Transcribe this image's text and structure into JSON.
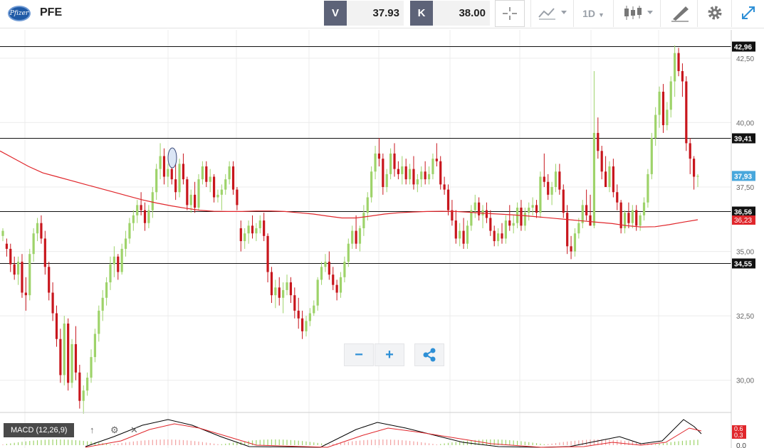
{
  "header": {
    "logo_text": "Pfizer",
    "symbol": "PFE",
    "sell": {
      "label": "V",
      "value": "37.93"
    },
    "buy": {
      "label": "K",
      "value": "38.00"
    },
    "timeframe": "1D"
  },
  "colors": {
    "up": "#9ed36a",
    "down": "#c8161d",
    "ma": "#e0262b",
    "macd": "#000000",
    "signal": "#e0262b",
    "badge": "#111111",
    "price_badge": "#48a7dc"
  },
  "chart_data": {
    "type": "candlestick",
    "symbol": "PFE",
    "y_ticks": [
      "42,50",
      "40,00",
      "37,50",
      "35,00",
      "32,50",
      "30,00"
    ],
    "ylim": [
      28.75,
      43.6
    ],
    "horizontal_levels": [
      "42,96",
      "39,41",
      "36,56",
      "34,55"
    ],
    "current_price": "37,93",
    "ma_value": "36,23",
    "candles": [
      [
        35.6,
        35.9,
        35.4,
        35.8
      ],
      [
        35.3,
        35.5,
        34.8,
        35.1
      ],
      [
        35.1,
        35.3,
        34.2,
        34.5
      ],
      [
        34.5,
        34.8,
        33.9,
        34.1
      ],
      [
        34.1,
        34.8,
        33.7,
        34.6
      ],
      [
        34.6,
        34.9,
        33.2,
        33.4
      ],
      [
        33.4,
        34.0,
        32.7,
        33.3
      ],
      [
        33.3,
        35.1,
        33.1,
        34.9
      ],
      [
        34.9,
        35.9,
        34.6,
        35.7
      ],
      [
        35.7,
        36.3,
        35.4,
        36.1
      ],
      [
        36.1,
        36.4,
        35.3,
        35.5
      ],
      [
        35.5,
        35.8,
        34.1,
        34.4
      ],
      [
        34.4,
        34.6,
        33.1,
        33.4
      ],
      [
        33.4,
        33.8,
        32.3,
        32.6
      ],
      [
        32.6,
        32.9,
        31.3,
        31.6
      ],
      [
        31.6,
        32.0,
        29.9,
        30.2
      ],
      [
        30.2,
        32.5,
        29.8,
        32.2
      ],
      [
        32.2,
        32.4,
        29.6,
        29.9
      ],
      [
        29.9,
        31.6,
        29.7,
        31.4
      ],
      [
        31.4,
        32.1,
        30.0,
        30.3
      ],
      [
        30.3,
        30.6,
        28.9,
        29.2
      ],
      [
        29.2,
        29.8,
        28.7,
        29.6
      ],
      [
        29.6,
        30.3,
        29.4,
        30.1
      ],
      [
        30.1,
        31.2,
        29.9,
        30.9
      ],
      [
        30.9,
        32.0,
        30.7,
        31.8
      ],
      [
        31.8,
        32.9,
        31.5,
        32.7
      ],
      [
        32.7,
        33.5,
        32.3,
        33.2
      ],
      [
        33.2,
        34.0,
        32.9,
        33.8
      ],
      [
        33.8,
        34.8,
        33.5,
        34.5
      ],
      [
        34.5,
        35.2,
        34.0,
        34.8
      ],
      [
        34.8,
        34.9,
        33.9,
        34.2
      ],
      [
        34.2,
        35.3,
        34.1,
        35.1
      ],
      [
        35.1,
        35.8,
        34.8,
        35.5
      ],
      [
        35.5,
        36.3,
        35.3,
        36.1
      ],
      [
        36.1,
        36.6,
        35.8,
        36.4
      ],
      [
        36.4,
        37.0,
        36.1,
        36.8
      ],
      [
        36.8,
        37.3,
        36.4,
        36.6
      ],
      [
        36.6,
        36.9,
        35.8,
        36.1
      ],
      [
        36.1,
        36.8,
        35.9,
        36.6
      ],
      [
        36.6,
        37.5,
        36.3,
        37.3
      ],
      [
        37.3,
        38.4,
        37.0,
        38.2
      ],
      [
        38.2,
        39.2,
        37.8,
        38.7
      ],
      [
        38.7,
        39.0,
        37.6,
        37.9
      ],
      [
        37.9,
        38.4,
        37.5,
        38.2
      ],
      [
        38.2,
        38.9,
        37.6,
        37.8
      ],
      [
        37.8,
        38.4,
        37.0,
        37.3
      ],
      [
        37.3,
        38.6,
        37.1,
        38.4
      ],
      [
        38.4,
        38.8,
        37.6,
        37.8
      ],
      [
        37.8,
        37.9,
        36.6,
        36.8
      ],
      [
        36.8,
        37.4,
        36.5,
        37.2
      ],
      [
        37.2,
        37.7,
        36.5,
        36.7
      ],
      [
        36.7,
        38.0,
        36.6,
        37.8
      ],
      [
        37.8,
        38.5,
        37.6,
        38.3
      ],
      [
        38.3,
        38.5,
        37.5,
        37.7
      ],
      [
        37.7,
        38.2,
        37.3,
        37.9
      ],
      [
        37.9,
        38.0,
        36.9,
        37.1
      ],
      [
        37.1,
        37.4,
        36.9,
        37.2
      ],
      [
        37.2,
        37.6,
        36.6,
        37.4
      ],
      [
        37.4,
        38.0,
        37.2,
        37.8
      ],
      [
        37.8,
        38.5,
        37.6,
        38.3
      ],
      [
        38.3,
        38.5,
        37.2,
        37.4
      ],
      [
        37.4,
        37.5,
        36.6,
        36.8
      ],
      [
        35.9,
        36.2,
        35.0,
        35.4
      ],
      [
        35.4,
        35.9,
        35.1,
        35.7
      ],
      [
        35.7,
        36.2,
        35.3,
        36.0
      ],
      [
        36.0,
        36.4,
        35.5,
        35.7
      ],
      [
        35.7,
        36.1,
        35.4,
        35.9
      ],
      [
        35.9,
        36.4,
        35.7,
        36.2
      ],
      [
        36.2,
        36.5,
        35.4,
        35.6
      ],
      [
        35.6,
        35.7,
        33.8,
        34.2
      ],
      [
        34.2,
        34.4,
        33.0,
        33.3
      ],
      [
        33.3,
        33.9,
        32.8,
        33.6
      ],
      [
        33.6,
        34.0,
        32.9,
        33.2
      ],
      [
        33.2,
        33.8,
        32.6,
        33.5
      ],
      [
        33.5,
        34.1,
        33.3,
        33.8
      ],
      [
        33.8,
        34.0,
        33.0,
        33.3
      ],
      [
        33.3,
        33.6,
        32.4,
        32.7
      ],
      [
        32.7,
        33.2,
        32.0,
        32.4
      ],
      [
        32.4,
        32.7,
        31.6,
        31.9
      ],
      [
        31.9,
        32.5,
        31.7,
        32.3
      ],
      [
        32.3,
        32.8,
        32.1,
        32.6
      ],
      [
        32.6,
        33.1,
        32.5,
        32.9
      ],
      [
        32.9,
        34.0,
        32.7,
        33.9
      ],
      [
        33.9,
        34.6,
        33.7,
        34.4
      ],
      [
        34.4,
        34.9,
        34.2,
        34.6
      ],
      [
        34.6,
        35.0,
        33.9,
        34.1
      ],
      [
        34.1,
        34.4,
        33.5,
        33.7
      ],
      [
        33.7,
        33.9,
        33.1,
        33.4
      ],
      [
        33.4,
        34.2,
        33.2,
        34.0
      ],
      [
        34.0,
        34.8,
        33.8,
        34.6
      ],
      [
        34.6,
        35.5,
        34.4,
        35.3
      ],
      [
        35.3,
        36.0,
        35.1,
        35.8
      ],
      [
        35.8,
        36.4,
        35.1,
        35.3
      ],
      [
        35.3,
        36.0,
        35.0,
        35.9
      ],
      [
        35.9,
        36.8,
        35.6,
        36.5
      ],
      [
        36.5,
        37.3,
        36.2,
        37.1
      ],
      [
        37.1,
        38.3,
        36.9,
        38.1
      ],
      [
        38.1,
        39.1,
        37.8,
        38.8
      ],
      [
        38.8,
        39.4,
        38.3,
        38.6
      ],
      [
        38.6,
        38.8,
        37.2,
        37.5
      ],
      [
        37.5,
        38.2,
        37.3,
        38.0
      ],
      [
        38.0,
        39.0,
        37.8,
        38.8
      ],
      [
        38.8,
        39.2,
        37.9,
        38.2
      ],
      [
        38.2,
        38.5,
        37.8,
        38.0
      ],
      [
        38.0,
        38.7,
        37.6,
        38.3
      ],
      [
        38.3,
        38.6,
        37.6,
        37.8
      ],
      [
        37.8,
        38.4,
        37.6,
        38.2
      ],
      [
        38.2,
        38.7,
        37.4,
        37.6
      ],
      [
        37.6,
        38.0,
        37.3,
        37.8
      ],
      [
        37.8,
        38.3,
        37.5,
        38.1
      ],
      [
        38.1,
        38.5,
        37.6,
        37.8
      ],
      [
        37.8,
        38.3,
        37.6,
        38.0
      ],
      [
        38.0,
        38.8,
        37.8,
        38.6
      ],
      [
        38.6,
        39.2,
        38.3,
        38.5
      ],
      [
        38.5,
        38.7,
        37.4,
        37.6
      ],
      [
        37.6,
        37.9,
        37.2,
        37.4
      ],
      [
        37.4,
        37.6,
        36.4,
        36.6
      ],
      [
        36.6,
        37.0,
        36.0,
        36.2
      ],
      [
        36.2,
        36.6,
        35.3,
        35.5
      ],
      [
        35.5,
        36.1,
        35.2,
        35.8
      ],
      [
        35.8,
        36.3,
        35.1,
        35.3
      ],
      [
        35.3,
        36.2,
        35.1,
        36.0
      ],
      [
        36.0,
        36.8,
        35.8,
        36.6
      ],
      [
        36.6,
        37.2,
        36.3,
        36.9
      ],
      [
        36.9,
        37.1,
        36.2,
        36.4
      ],
      [
        36.4,
        36.8,
        35.9,
        36.6
      ],
      [
        36.6,
        36.9,
        36.1,
        36.3
      ],
      [
        36.3,
        36.6,
        35.6,
        35.8
      ],
      [
        35.8,
        36.0,
        35.2,
        35.4
      ],
      [
        35.4,
        35.9,
        35.2,
        35.7
      ],
      [
        35.7,
        36.1,
        35.3,
        35.5
      ],
      [
        35.5,
        36.4,
        35.3,
        36.2
      ],
      [
        36.2,
        36.8,
        35.8,
        36.0
      ],
      [
        36.0,
        36.4,
        35.7,
        36.1
      ],
      [
        36.1,
        36.9,
        35.9,
        36.7
      ],
      [
        36.7,
        37.0,
        35.8,
        36.0
      ],
      [
        36.0,
        36.7,
        35.8,
        36.5
      ],
      [
        36.5,
        36.9,
        36.2,
        36.7
      ],
      [
        36.7,
        37.1,
        36.4,
        36.8
      ],
      [
        36.8,
        37.0,
        36.3,
        36.5
      ],
      [
        36.5,
        38.1,
        36.3,
        37.9
      ],
      [
        37.9,
        38.8,
        37.5,
        37.7
      ],
      [
        37.7,
        38.0,
        37.0,
        37.2
      ],
      [
        37.2,
        37.7,
        36.8,
        37.5
      ],
      [
        37.5,
        38.4,
        37.3,
        38.1
      ],
      [
        38.1,
        38.4,
        37.2,
        37.4
      ],
      [
        37.4,
        37.6,
        36.3,
        36.5
      ],
      [
        36.5,
        36.8,
        34.9,
        35.2
      ],
      [
        35.2,
        35.6,
        34.7,
        35.0
      ],
      [
        35.0,
        35.9,
        34.8,
        35.7
      ],
      [
        35.7,
        36.3,
        35.5,
        36.1
      ],
      [
        36.1,
        37.0,
        35.9,
        36.8
      ],
      [
        36.8,
        37.4,
        36.2,
        36.4
      ],
      [
        36.4,
        37.2,
        36.0,
        36.0
      ],
      [
        36.0,
        42.0,
        35.9,
        39.6
      ],
      [
        39.6,
        40.2,
        38.6,
        38.9
      ],
      [
        38.9,
        39.1,
        37.8,
        38.1
      ],
      [
        38.1,
        38.7,
        37.5,
        37.5
      ],
      [
        37.5,
        38.5,
        37.3,
        38.3
      ],
      [
        38.3,
        38.6,
        37.1,
        37.3
      ],
      [
        37.3,
        37.6,
        36.6,
        36.9
      ],
      [
        36.9,
        37.0,
        35.7,
        35.9
      ],
      [
        35.9,
        36.6,
        35.7,
        36.5
      ],
      [
        36.5,
        36.9,
        35.9,
        36.1
      ],
      [
        36.1,
        36.8,
        35.9,
        36.6
      ],
      [
        36.6,
        36.8,
        35.8,
        36.0
      ],
      [
        36.0,
        36.5,
        35.8,
        36.4
      ],
      [
        36.4,
        37.1,
        36.2,
        36.9
      ],
      [
        36.9,
        38.2,
        36.7,
        38.0
      ],
      [
        38.0,
        39.6,
        37.8,
        39.4
      ],
      [
        39.4,
        40.6,
        39.1,
        40.3
      ],
      [
        40.3,
        41.4,
        39.8,
        41.2
      ],
      [
        41.2,
        41.5,
        39.6,
        39.9
      ],
      [
        39.9,
        40.8,
        39.7,
        40.5
      ],
      [
        40.5,
        41.8,
        40.2,
        41.6
      ],
      [
        41.6,
        43.0,
        41.0,
        42.7
      ],
      [
        42.7,
        42.9,
        41.8,
        42.0
      ],
      [
        42.0,
        42.3,
        41.0,
        41.6
      ],
      [
        41.6,
        41.8,
        38.9,
        39.2
      ],
      [
        39.2,
        39.4,
        38.0,
        38.6
      ],
      [
        38.6,
        38.7,
        37.4,
        37.9
      ],
      [
        37.9,
        38.0,
        37.5,
        37.93
      ]
    ],
    "moving_average": [
      [
        0,
        38.9
      ],
      [
        20,
        38.6
      ],
      [
        40,
        38.3
      ],
      [
        60,
        38.05
      ],
      [
        80,
        37.9
      ],
      [
        100,
        37.75
      ],
      [
        120,
        37.6
      ],
      [
        140,
        37.45
      ],
      [
        160,
        37.3
      ],
      [
        180,
        37.15
      ],
      [
        200,
        37.0
      ],
      [
        220,
        36.88
      ],
      [
        240,
        36.77
      ],
      [
        260,
        36.68
      ],
      [
        280,
        36.6
      ],
      [
        300,
        36.56
      ],
      [
        320,
        36.55
      ],
      [
        340,
        36.55
      ],
      [
        360,
        36.57
      ],
      [
        380,
        36.57
      ],
      [
        400,
        36.55
      ],
      [
        420,
        36.5
      ],
      [
        440,
        36.45
      ],
      [
        460,
        36.37
      ],
      [
        480,
        36.3
      ],
      [
        500,
        36.3
      ],
      [
        520,
        36.37
      ],
      [
        540,
        36.45
      ],
      [
        560,
        36.5
      ],
      [
        580,
        36.53
      ],
      [
        600,
        36.55
      ],
      [
        620,
        36.56
      ],
      [
        640,
        36.55
      ],
      [
        660,
        36.52
      ],
      [
        680,
        36.48
      ],
      [
        700,
        36.45
      ],
      [
        720,
        36.42
      ],
      [
        740,
        36.38
      ],
      [
        760,
        36.33
      ],
      [
        780,
        36.28
      ],
      [
        800,
        36.23
      ],
      [
        820,
        36.18
      ],
      [
        840,
        36.13
      ],
      [
        860,
        36.08
      ],
      [
        880,
        36.0
      ],
      [
        900,
        35.95
      ],
      [
        920,
        35.96
      ],
      [
        940,
        36.04
      ],
      [
        960,
        36.14
      ],
      [
        980,
        36.23
      ]
    ],
    "indicator": {
      "name": "MACD (12,26,9)",
      "y_ticks": [
        "0.0"
      ],
      "badge_values": [
        "0.6",
        "0.3"
      ]
    }
  }
}
